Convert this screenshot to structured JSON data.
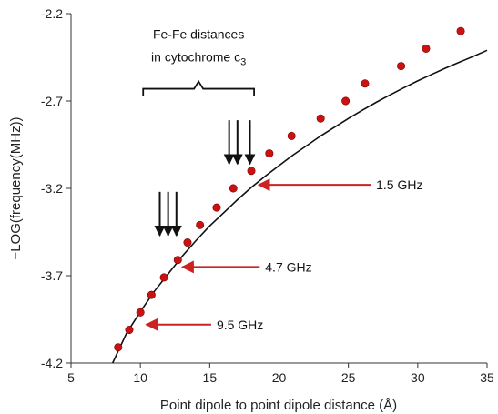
{
  "chart_data": {
    "type": "scatter",
    "title": "",
    "xlabel": "Point dipole to point dipole distance (Å)",
    "ylabel": "−LOG(frequency(MHz))",
    "xlim": [
      5,
      35
    ],
    "ylim": [
      -4.2,
      -2.2
    ],
    "x_ticks": [
      "5",
      "10",
      "15",
      "20",
      "25",
      "30",
      "35"
    ],
    "y_ticks": [
      "-4.2",
      "-3.7",
      "-3.2",
      "-2.7",
      "-2.2"
    ],
    "grid": false,
    "marker_color": "#cc1111",
    "curve_color": "#111111",
    "arrow_color": "#cc2222",
    "series": [
      {
        "x": [
          8.4,
          9.2,
          10.0,
          10.8,
          11.7,
          12.7,
          13.4,
          14.3,
          15.5,
          16.7,
          18.0,
          19.3,
          20.9,
          23.0,
          24.8,
          26.2,
          28.8,
          30.6,
          33.1
        ],
        "y": [
          -4.11,
          -4.01,
          -3.91,
          -3.81,
          -3.71,
          -3.61,
          -3.51,
          -3.41,
          -3.31,
          -3.2,
          -3.1,
          -3.0,
          -2.9,
          -2.8,
          -2.7,
          -2.6,
          -2.5,
          -2.4,
          -2.3
        ]
      }
    ],
    "fit_curve": {
      "x": [
        8.0,
        9.0,
        10.0,
        11.0,
        12.0,
        13.0,
        14.0,
        15.0,
        16.0,
        17.0,
        18.0,
        19.0,
        20.0,
        21.0,
        22.0,
        23.0,
        24.0,
        25.0,
        26.0,
        27.0,
        28.0,
        29.0,
        30.0,
        31.0,
        32.0,
        33.0,
        34.0,
        35.0
      ],
      "y": [
        -4.22,
        -4.03,
        -3.905,
        -3.79,
        -3.69,
        -3.59,
        -3.5,
        -3.415,
        -3.34,
        -3.265,
        -3.195,
        -3.13,
        -3.07,
        -3.01,
        -2.955,
        -2.9,
        -2.85,
        -2.8,
        -2.753,
        -2.708,
        -2.665,
        -2.624,
        -2.585,
        -2.548,
        -2.512,
        -2.478,
        -2.445,
        -2.41
      ]
    },
    "bracket": {
      "label_line1": "Fe-Fe distances",
      "label_line2": "in cytochrome c",
      "label_subscript": "3",
      "x_start": 10.2,
      "x_end": 18.2,
      "y": -2.63
    },
    "distance_arrows": [
      {
        "x": 11.4,
        "y_top": -3.22,
        "y_bottom": -3.47
      },
      {
        "x": 12.0,
        "y_top": -3.22,
        "y_bottom": -3.47
      },
      {
        "x": 12.6,
        "y_top": -3.22,
        "y_bottom": -3.47
      },
      {
        "x": 16.4,
        "y_top": -2.81,
        "y_bottom": -3.06
      },
      {
        "x": 17.0,
        "y_top": -2.81,
        "y_bottom": -3.06
      },
      {
        "x": 17.9,
        "y_top": -2.81,
        "y_bottom": -3.06
      }
    ],
    "annotations": [
      {
        "text": "1.5 GHz",
        "x": 18.2,
        "y": -3.18,
        "text_x": 27.0
      },
      {
        "text": "4.7 GHz",
        "x": 12.7,
        "y": -3.65,
        "text_x": 19.0
      },
      {
        "text": "9.5 GHz",
        "x": 10.1,
        "y": -3.98,
        "text_x": 15.5
      }
    ]
  }
}
